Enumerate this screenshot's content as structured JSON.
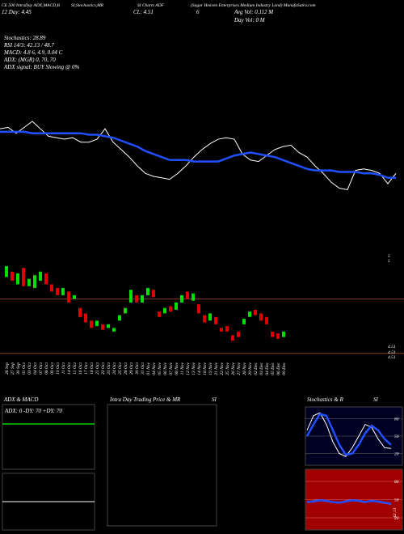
{
  "header": {
    "line1": [
      "CE 500 IntraDay ADX,MACD,B",
      "SI,Stochastics,MR",
      "SI Charts ADF",
      "(Sagar Heaven Enterprises Medium Industry Land) MunafaSutra.com"
    ],
    "line2": [
      "12 Day: 4.45",
      "CL: 4.51",
      "6",
      "Avg Vol: 0.112 M"
    ],
    "day_vol": "Day Vol: 0  M",
    "stats": [
      "Stochastics: 28.89",
      "RSI 14/3: 42.13 / 48.7",
      "MACD: 4.8         6, 4.9, 0.04  C",
      "ADX:                     (MGR) 0, 70, 70",
      "ADX  signal:                     BUY Slowing @ 0%"
    ]
  },
  "chart_data": [
    {
      "type": "line",
      "name": "price-ma",
      "ylim": [
        4.51,
        5
      ],
      "series": [
        {
          "color": "#ffffff",
          "values": [
            4.95,
            4.96,
            4.92,
            4.96,
            5.0,
            4.95,
            4.9,
            4.89,
            4.88,
            4.89,
            4.86,
            4.86,
            4.88,
            4.95,
            4.86,
            4.81,
            4.76,
            4.7,
            4.65,
            4.63,
            4.62,
            4.61,
            4.65,
            4.7,
            4.76,
            4.81,
            4.85,
            4.88,
            4.89,
            4.88,
            4.78,
            4.74,
            4.73,
            4.77,
            4.81,
            4.83,
            4.84,
            4.79,
            4.76,
            4.7,
            4.65,
            4.59,
            4.55,
            4.54,
            4.67,
            4.68,
            4.67,
            4.65,
            4.58,
            4.65
          ]
        },
        {
          "color": "#1f4fff",
          "values": [
            4.93,
            4.93,
            4.93,
            4.93,
            4.92,
            4.92,
            4.92,
            4.92,
            4.92,
            4.92,
            4.92,
            4.91,
            4.91,
            4.9,
            4.89,
            4.87,
            4.85,
            4.83,
            4.8,
            4.78,
            4.76,
            4.74,
            4.74,
            4.74,
            4.73,
            4.73,
            4.73,
            4.73,
            4.75,
            4.77,
            4.78,
            4.79,
            4.78,
            4.77,
            4.76,
            4.74,
            4.72,
            4.7,
            4.68,
            4.67,
            4.67,
            4.67,
            4.66,
            4.66,
            4.66,
            4.65,
            4.65,
            4.64,
            4.62,
            4.62
          ]
        }
      ]
    },
    {
      "type": "candlestick",
      "ylim": [
        4.51,
        5
      ],
      "up_color": "#00e000",
      "down_color": "#e00000",
      "levels": [
        4.78,
        4.48
      ],
      "right_labels": [
        5,
        5,
        4.51,
        4.51,
        4.51
      ],
      "categories": [
        "26 Sep",
        "27 Sep",
        "30 Sep",
        "01 Oct",
        "03 Oct",
        "04 Oct",
        "07 Oct",
        "08 Oct",
        "09 Oct",
        "10 Oct",
        "11 Oct",
        "14 Oct",
        "15 Oct",
        "16 Oct",
        "17 Oct",
        "18 Oct",
        "21 Oct",
        "22 Oct",
        "23 Oct",
        "24 Oct",
        "25 Oct",
        "28 Oct",
        "29 Oct",
        "30 Oct",
        "31 Oct",
        "01 Nov",
        "04 Nov",
        "05 Nov",
        "06 Nov",
        "07 Nov",
        "08 Nov",
        "11 Nov",
        "12 Nov",
        "13 Nov",
        "14 Nov",
        "18 Nov",
        "19 Nov",
        "21 Nov",
        "22 Nov",
        "25 Nov",
        "26 Nov",
        "27 Nov",
        "28 Nov",
        "29 Nov",
        "02 Dec",
        "03 Dec",
        "04 Dec",
        "05 Dec",
        "06 Dec",
        "09 Dec"
      ],
      "open": [
        4.9,
        4.93,
        4.86,
        4.95,
        4.85,
        4.84,
        4.88,
        4.92,
        4.86,
        4.84,
        4.8,
        4.82,
        4.78,
        4.73,
        4.7,
        4.66,
        4.63,
        4.64,
        4.62,
        4.6,
        4.66,
        4.7,
        4.76,
        4.8,
        4.76,
        4.8,
        4.83,
        4.71,
        4.7,
        4.74,
        4.72,
        4.76,
        4.82,
        4.77,
        4.75,
        4.69,
        4.66,
        4.68,
        4.62,
        4.63,
        4.58,
        4.6,
        4.64,
        4.68,
        4.72,
        4.7,
        4.68,
        4.6,
        4.59,
        4.57
      ],
      "close": [
        4.96,
        4.88,
        4.92,
        4.85,
        4.89,
        4.91,
        4.93,
        4.86,
        4.82,
        4.8,
        4.84,
        4.76,
        4.8,
        4.68,
        4.65,
        4.62,
        4.66,
        4.61,
        4.64,
        4.62,
        4.69,
        4.73,
        4.83,
        4.76,
        4.8,
        4.84,
        4.79,
        4.68,
        4.73,
        4.71,
        4.76,
        4.8,
        4.78,
        4.81,
        4.7,
        4.65,
        4.7,
        4.64,
        4.6,
        4.6,
        4.55,
        4.57,
        4.67,
        4.71,
        4.69,
        4.66,
        4.64,
        4.57,
        4.56,
        4.6
      ]
    },
    {
      "type": "line",
      "title": "ADX  & MACD",
      "annotation": "ADX: 0  -DY: 70  +DY: 70",
      "ylim": [
        0,
        100
      ],
      "series": [
        {
          "color": "#00cc00",
          "values": [
            70,
            70
          ]
        }
      ]
    },
    {
      "type": "panel",
      "title": "Intra Day Trading Price  & MR",
      "title2": "SI"
    },
    {
      "type": "line",
      "title": "Stochastics & R",
      "title2": "SI",
      "ylim": [
        0,
        100
      ],
      "yticks": [
        80,
        50,
        20
      ],
      "series": [
        {
          "color": "#ffffff",
          "values": [
            60,
            85,
            90,
            70,
            40,
            20,
            15,
            30,
            50,
            70,
            65,
            45,
            30,
            28.89
          ]
        },
        {
          "color": "#1f4fff",
          "values": [
            50,
            70,
            88,
            85,
            60,
            35,
            18,
            20,
            35,
            55,
            68,
            60,
            45,
            35
          ]
        }
      ]
    },
    {
      "type": "line",
      "ylim": [
        0,
        100
      ],
      "yticks": [
        80,
        50,
        20
      ],
      "value_label": 42.13,
      "series": [
        {
          "color": "#ffffff",
          "values": [
            45,
            48,
            50,
            47,
            46,
            44,
            48,
            50,
            47,
            45,
            49,
            46,
            44,
            42.13
          ]
        },
        {
          "color": "#1f4fff",
          "values": [
            46,
            47,
            49,
            48,
            46,
            45,
            47,
            49,
            48,
            46,
            48,
            47,
            45,
            43
          ]
        }
      ]
    }
  ]
}
